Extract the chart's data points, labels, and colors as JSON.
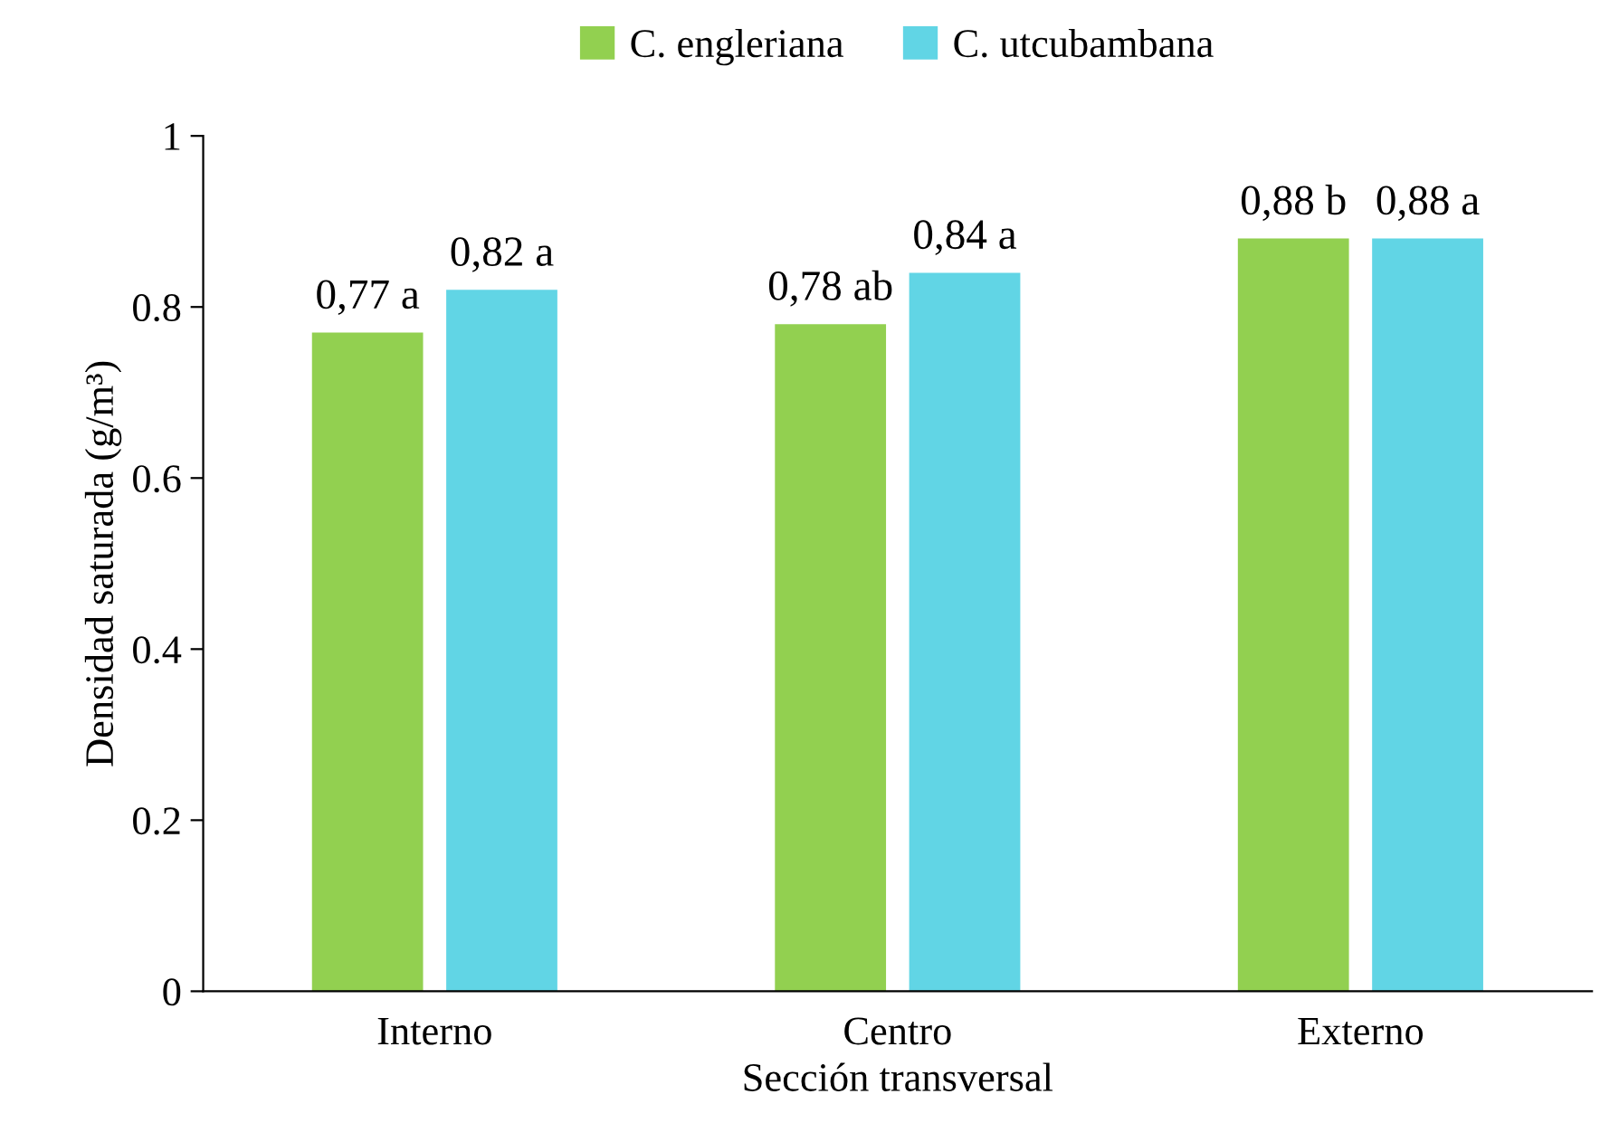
{
  "chart_data": {
    "type": "bar",
    "xlabel": "Sección transversal",
    "ylabel": "Densidad saturada (g/m³)",
    "categories": [
      "Interno",
      "Centro",
      "Externo"
    ],
    "series": [
      {
        "name": "C. engleriana",
        "color": "#92d050",
        "values": [
          0.77,
          0.78,
          0.88
        ],
        "value_labels": [
          "0,77 a",
          "0,78 ab",
          "0,88 b"
        ]
      },
      {
        "name": "C. utcubambana",
        "color": "#61d5e5",
        "values": [
          0.82,
          0.84,
          0.88
        ],
        "value_labels": [
          "0,82 a",
          "0,84 a",
          "0,88 a"
        ]
      }
    ],
    "ylim": [
      0,
      1
    ],
    "yticks": [
      0,
      0.2,
      0.4,
      0.6,
      0.8,
      1
    ],
    "grid": false,
    "legend": "top"
  }
}
